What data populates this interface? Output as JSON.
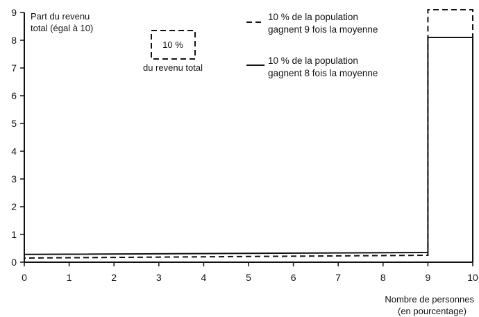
{
  "chart_data": {
    "type": "bar",
    "x_ticks": [
      "0",
      "1",
      "2",
      "3",
      "4",
      "5",
      "6",
      "7",
      "8",
      "9",
      "10"
    ],
    "y_ticks": [
      "0",
      "1",
      "2",
      "3",
      "4",
      "5",
      "6",
      "7",
      "8",
      "9"
    ],
    "xlim": [
      0,
      10
    ],
    "ylim": [
      0,
      9
    ],
    "ylabel_line1": "Part du revenu",
    "ylabel_line2": "total (égal à 10)",
    "xlabel_line1": "Nombre de personnes",
    "xlabel_line2": "(en pourcentage)",
    "annotation": {
      "box_label": "10 %",
      "caption": "du revenu total"
    },
    "series": [
      {
        "style": "dashed",
        "legend_line1": "10 % de la population",
        "legend_line2": "gagnent 9 fois la moyenne",
        "segments": [
          {
            "x_start": 0,
            "x_end": 9,
            "y_start": 0.15,
            "y_end": 0.25
          },
          {
            "x_start": 9,
            "x_end": 10,
            "y_start": 9.1,
            "y_end": 9.1
          }
        ]
      },
      {
        "style": "solid",
        "legend_line1": "10 % de la population",
        "legend_line2": "gagnent 8 fois la moyenne",
        "segments": [
          {
            "x_start": 0,
            "x_end": 9,
            "y_start": 0.28,
            "y_end": 0.35
          },
          {
            "x_start": 9,
            "x_end": 10,
            "y_start": 8.1,
            "y_end": 8.1
          }
        ]
      }
    ]
  }
}
